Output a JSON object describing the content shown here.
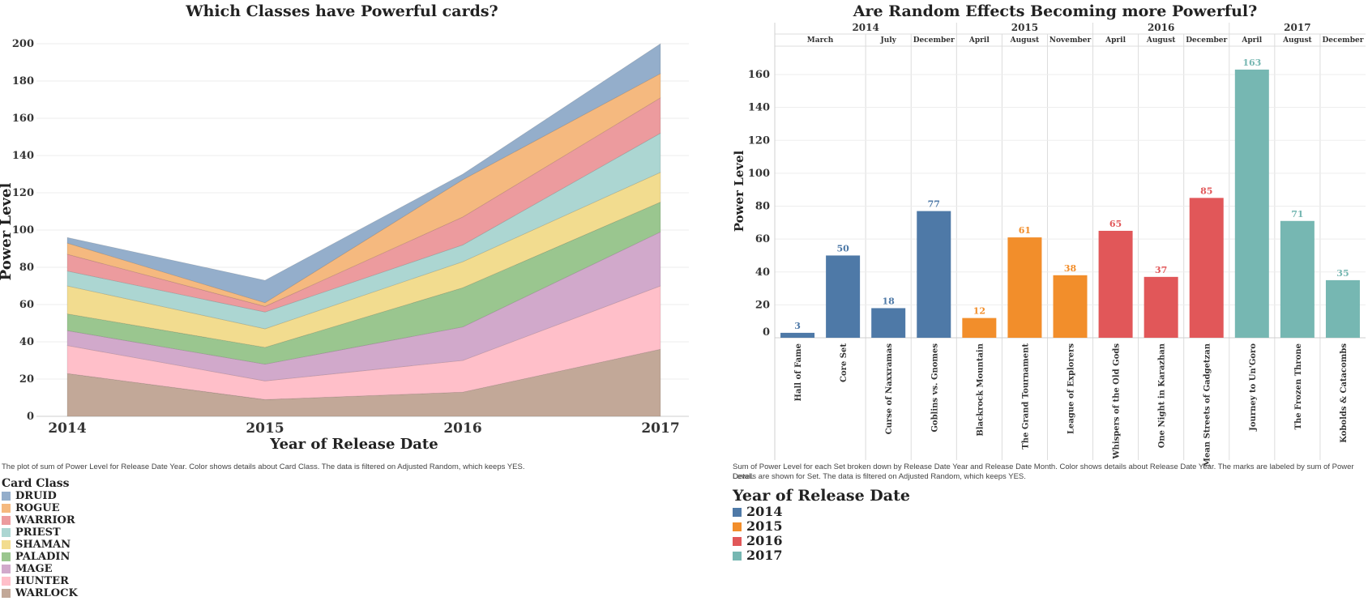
{
  "left_chart": {
    "title": "Which Classes have Powerful cards?",
    "caption": "The plot of sum of Power Level for Release Date Year.  Color shows details about Card Class. The data is filtered on Adjusted Random, which keeps YES.",
    "legend_title": "Card Class"
  },
  "right_chart": {
    "title": "Are Random Effects Becoming more Powerful?",
    "caption_line1": "Sum of Power Level for each Set broken down by Release Date Year and Release Date Month.  Color shows details about Release Date Year.  The marks are labeled by sum of Power Level.",
    "caption_line2": "Details are shown for Set. The data is filtered on Adjusted Random, which keeps YES.",
    "legend_title": "Year of Release Date"
  },
  "chart_data": [
    {
      "type": "area",
      "stacked": true,
      "title": "Which Classes have Powerful cards?",
      "xlabel": "Year of Release Date",
      "ylabel": "Power Level",
      "x": [
        "2014",
        "2015",
        "2016",
        "2017"
      ],
      "ylim": [
        0,
        200
      ],
      "yticks": [
        0,
        20,
        40,
        60,
        80,
        100,
        120,
        140,
        160,
        180,
        200
      ],
      "grid": true,
      "legend_title": "Card Class",
      "legend_position": "bottom-left",
      "series": [
        {
          "name": "WARLOCK",
          "color": "#c2a898",
          "values": [
            23,
            9,
            13,
            36
          ]
        },
        {
          "name": "HUNTER",
          "color": "#ffbfc9",
          "values": [
            15,
            10,
            17,
            34
          ]
        },
        {
          "name": "MAGE",
          "color": "#d1a9cb",
          "values": [
            8,
            9,
            18,
            29
          ]
        },
        {
          "name": "PALADIN",
          "color": "#9ac68f",
          "values": [
            9,
            9,
            21,
            16
          ]
        },
        {
          "name": "SHAMAN",
          "color": "#f2dc8f",
          "values": [
            15,
            10,
            14,
            16
          ]
        },
        {
          "name": "PRIEST",
          "color": "#acd6d2",
          "values": [
            8,
            9,
            9,
            21
          ]
        },
        {
          "name": "WARRIOR",
          "color": "#ec9b9e",
          "values": [
            9,
            3,
            15,
            19
          ]
        },
        {
          "name": "ROGUE",
          "color": "#f5b97f",
          "values": [
            6,
            2,
            20,
            13
          ]
        },
        {
          "name": "DRUID",
          "color": "#94aecb",
          "values": [
            3,
            12,
            3,
            16
          ]
        }
      ]
    },
    {
      "type": "bar",
      "title": "Are Random Effects Becoming more Powerful?",
      "xlabel": "",
      "ylabel": "Power Level",
      "ylim": [
        0,
        170
      ],
      "yticks": [
        0,
        20,
        40,
        60,
        80,
        100,
        120,
        140,
        160
      ],
      "legend_title": "Year of Release Date",
      "legend_position": "bottom-left",
      "years": [
        {
          "year": "2014",
          "color": "#4e79a7"
        },
        {
          "year": "2015",
          "color": "#f28e2b"
        },
        {
          "year": "2016",
          "color": "#e15759"
        },
        {
          "year": "2017",
          "color": "#76b7b2"
        }
      ],
      "groups": [
        {
          "year": "2014",
          "month": "March",
          "sets": [
            "Hall of Fame",
            "Core Set"
          ]
        },
        {
          "year": "2014",
          "month": "July",
          "sets": [
            "Curse of Naxxramas"
          ]
        },
        {
          "year": "2014",
          "month": "December",
          "sets": [
            "Goblins vs. Gnomes"
          ]
        },
        {
          "year": "2015",
          "month": "April",
          "sets": [
            "Blackrock Mountain"
          ]
        },
        {
          "year": "2015",
          "month": "August",
          "sets": [
            "The Grand Tournament"
          ]
        },
        {
          "year": "2015",
          "month": "November",
          "sets": [
            "League of Explorers"
          ]
        },
        {
          "year": "2016",
          "month": "April",
          "sets": [
            "Whispers of the Old Gods"
          ]
        },
        {
          "year": "2016",
          "month": "August",
          "sets": [
            "One Night in Karazhan"
          ]
        },
        {
          "year": "2016",
          "month": "December",
          "sets": [
            "Mean Streets of Gadgetzan"
          ]
        },
        {
          "year": "2017",
          "month": "April",
          "sets": [
            "Journey to Un'Goro"
          ]
        },
        {
          "year": "2017",
          "month": "August",
          "sets": [
            "The Frozen Throne"
          ]
        },
        {
          "year": "2017",
          "month": "December",
          "sets": [
            "Kobolds & Catacombs"
          ]
        }
      ],
      "categories": [
        "Hall of Fame",
        "Core Set",
        "Curse of Naxxramas",
        "Goblins vs. Gnomes",
        "Blackrock Mountain",
        "The Grand Tournament",
        "League of Explorers",
        "Whispers of the Old Gods",
        "One Night in Karazhan",
        "Mean Streets of Gadgetzan",
        "Journey to Un'Goro",
        "The Frozen Throne",
        "Kobolds & Catacombs"
      ],
      "category_years": [
        "2014",
        "2014",
        "2014",
        "2014",
        "2015",
        "2015",
        "2015",
        "2016",
        "2016",
        "2016",
        "2017",
        "2017",
        "2017"
      ],
      "values": [
        3,
        50,
        18,
        77,
        12,
        61,
        38,
        65,
        37,
        85,
        163,
        71,
        35
      ]
    }
  ]
}
